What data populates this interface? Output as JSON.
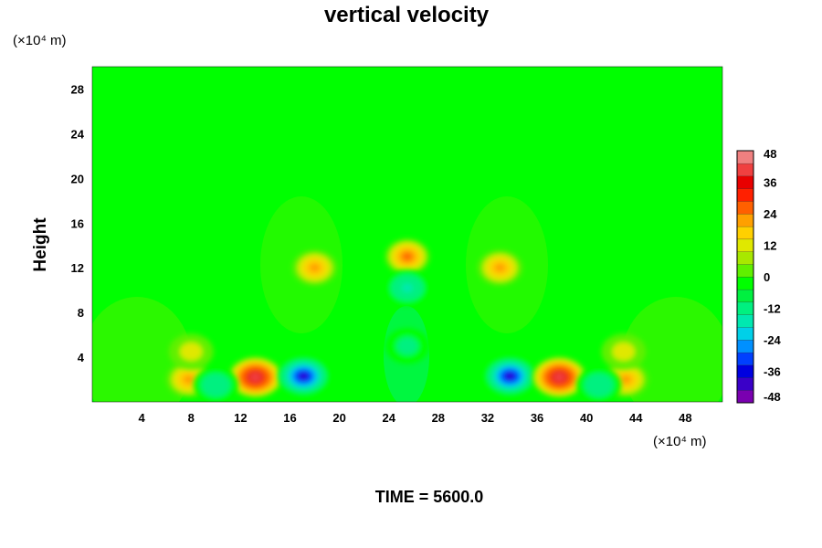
{
  "chart_data": {
    "type": "heatmap",
    "title": "vertical velocity",
    "ylabel": "Height",
    "x_unit": "(×10⁴ m)",
    "y_unit": "(×10⁴ m)",
    "footer": "TIME = 5600.0",
    "xlim": [
      0,
      51
    ],
    "ylim": [
      0,
      30
    ],
    "x_ticks": [
      4,
      8,
      12,
      16,
      20,
      24,
      28,
      32,
      36,
      40,
      44,
      48
    ],
    "y_ticks": [
      4,
      8,
      12,
      16,
      20,
      24,
      28
    ],
    "colorbar": {
      "min": -48,
      "max": 48,
      "ticks": [
        48,
        36,
        24,
        12,
        0,
        -12,
        -24,
        -36,
        -48
      ],
      "colors": [
        "#7a00b0",
        "#3a00c8",
        "#0000e0",
        "#0040ff",
        "#0090ff",
        "#00d0e8",
        "#00e8b0",
        "#00f080",
        "#00f040",
        "#00ff00",
        "#60f000",
        "#a8e800",
        "#e0e800",
        "#ffd000",
        "#ffa000",
        "#ff6000",
        "#ff2000",
        "#e80000",
        "#f04040",
        "#f08080"
      ]
    },
    "features": [
      {
        "x": 13.2,
        "y": 2.2,
        "value": 44
      },
      {
        "x": 17.1,
        "y": 2.3,
        "value": -42
      },
      {
        "x": 33.8,
        "y": 2.3,
        "value": -42
      },
      {
        "x": 37.8,
        "y": 2.2,
        "value": 44
      },
      {
        "x": 7.8,
        "y": 2.0,
        "value": 20
      },
      {
        "x": 43.2,
        "y": 2.0,
        "value": 20
      },
      {
        "x": 10.0,
        "y": 1.5,
        "value": -12
      },
      {
        "x": 41.0,
        "y": 1.5,
        "value": -12
      },
      {
        "x": 18.0,
        "y": 12.0,
        "value": 20
      },
      {
        "x": 33.0,
        "y": 12.0,
        "value": 20
      },
      {
        "x": 25.5,
        "y": 13.0,
        "value": 24
      },
      {
        "x": 25.5,
        "y": 10.2,
        "value": -20
      },
      {
        "x": 25.5,
        "y": 5.0,
        "value": -6
      },
      {
        "x": 8.0,
        "y": 4.5,
        "value": 6
      },
      {
        "x": 43.0,
        "y": 4.5,
        "value": 6
      }
    ]
  }
}
